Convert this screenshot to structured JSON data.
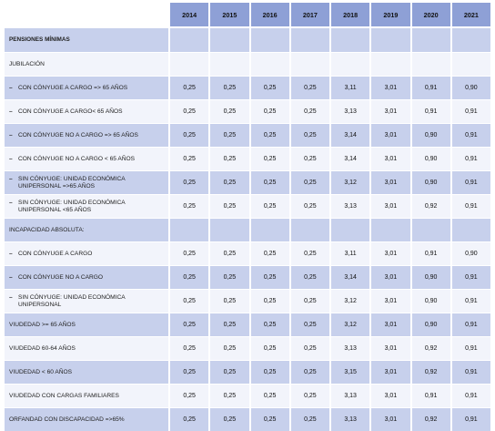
{
  "years": [
    "2014",
    "2015",
    "2016",
    "2017",
    "2018",
    "2019",
    "2020",
    "2021"
  ],
  "rows": [
    {
      "label": "PENSIONES MÍNIMAS",
      "type": "section",
      "dash": false,
      "values": []
    },
    {
      "label": "JUBILACIÓN",
      "type": "group",
      "dash": false,
      "values": []
    },
    {
      "label": "CON CÓNYUGE A CARGO => 65 AÑOS",
      "type": "data",
      "dash": true,
      "values": [
        "0,25",
        "0,25",
        "0,25",
        "0,25",
        "3,11",
        "3,01",
        "0,91",
        "0,90"
      ]
    },
    {
      "label": "CON CÓNYUGE A CARGO< 65 AÑOS",
      "type": "data",
      "dash": true,
      "values": [
        "0,25",
        "0,25",
        "0,25",
        "0,25",
        "3,13",
        "3,01",
        "0,91",
        "0,91"
      ]
    },
    {
      "label": "CON CÓNYUGE NO A CARGO => 65 AÑOS",
      "type": "data",
      "dash": true,
      "values": [
        "0,25",
        "0,25",
        "0,25",
        "0,25",
        "3,14",
        "3,01",
        "0,90",
        "0,91"
      ]
    },
    {
      "label": "CON CÓNYUGE NO A CARGO < 65 AÑOS",
      "type": "data",
      "dash": true,
      "values": [
        "0,25",
        "0,25",
        "0,25",
        "0,25",
        "3,14",
        "3,01",
        "0,90",
        "0,91"
      ]
    },
    {
      "label": "SIN CÓNYUGE: UNIDAD ECONÓMICA UNIPERSONAL =>65 AÑOS",
      "type": "data",
      "dash": true,
      "values": [
        "0,25",
        "0,25",
        "0,25",
        "0,25",
        "3,12",
        "3,01",
        "0,90",
        "0,91"
      ]
    },
    {
      "label": "SIN CÓNYUGE: UNIDAD ECONÓMICA UNIPERSONAL <65 AÑOS",
      "type": "data",
      "dash": true,
      "values": [
        "0,25",
        "0,25",
        "0,25",
        "0,25",
        "3,13",
        "3,01",
        "0,92",
        "0,91"
      ]
    },
    {
      "label": "INCAPACIDAD ABSOLUTA:",
      "type": "group",
      "dash": false,
      "values": []
    },
    {
      "label": "CON CÓNYUGE A CARGO",
      "type": "data",
      "dash": true,
      "values": [
        "0,25",
        "0,25",
        "0,25",
        "0,25",
        "3,11",
        "3,01",
        "0,91",
        "0,90"
      ]
    },
    {
      "label": "CON CÓNYUGE NO A CARGO",
      "type": "data",
      "dash": true,
      "values": [
        "0,25",
        "0,25",
        "0,25",
        "0,25",
        "3,14",
        "3,01",
        "0,90",
        "0,91"
      ]
    },
    {
      "label": "SIN CÓNYUGE: UNIDAD ECONÓMICA UNIPERSONAL",
      "type": "data",
      "dash": true,
      "values": [
        "0,25",
        "0,25",
        "0,25",
        "0,25",
        "3,12",
        "3,01",
        "0,90",
        "0,91"
      ]
    },
    {
      "label": "VIUDEDAD >= 65 AÑOS",
      "type": "data",
      "dash": false,
      "values": [
        "0,25",
        "0,25",
        "0,25",
        "0,25",
        "3,12",
        "3,01",
        "0,90",
        "0,91"
      ]
    },
    {
      "label": "VIUDEDAD 60-64 AÑOS",
      "type": "data",
      "dash": false,
      "values": [
        "0,25",
        "0,25",
        "0,25",
        "0,25",
        "3,13",
        "3,01",
        "0,92",
        "0,91"
      ]
    },
    {
      "label": "VIUDEDAD < 60 AÑOS",
      "type": "data",
      "dash": false,
      "values": [
        "0,25",
        "0,25",
        "0,25",
        "0,25",
        "3,15",
        "3,01",
        "0,92",
        "0,91"
      ]
    },
    {
      "label": "VIUDEDAD CON CARGAS FAMILIARES",
      "type": "data",
      "dash": false,
      "values": [
        "0,25",
        "0,25",
        "0,25",
        "0,25",
        "3,13",
        "3,01",
        "0,91",
        "0,91"
      ]
    },
    {
      "label": "ORFANDAD CON DISCAPACIDAD =>65%",
      "type": "data",
      "dash": false,
      "values": [
        "0,25",
        "0,25",
        "0,25",
        "0,25",
        "3,13",
        "3,01",
        "0,92",
        "0,91"
      ]
    }
  ]
}
